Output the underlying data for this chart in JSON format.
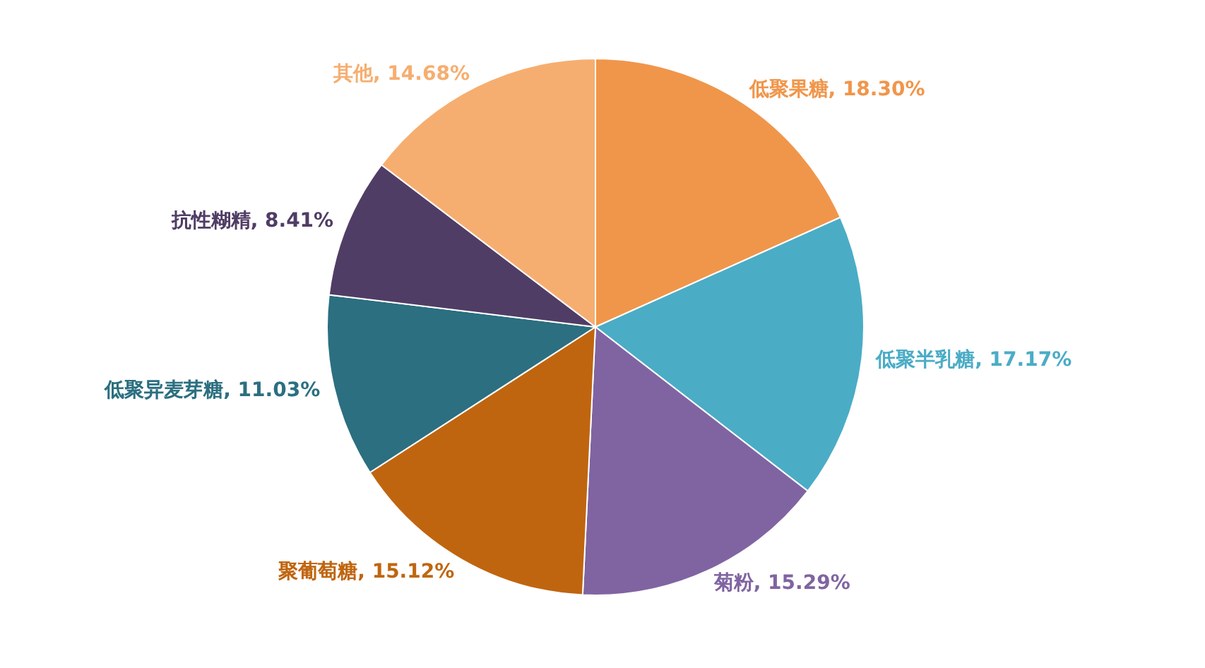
{
  "chart_data": {
    "type": "pie",
    "categories": [
      "低聚果糖",
      "低聚半乳糖",
      "菊粉",
      "聚葡萄糖",
      "低聚异麦芽糖",
      "抗性糊精",
      "其他"
    ],
    "values": [
      18.3,
      17.17,
      15.29,
      15.12,
      11.03,
      8.41,
      14.68
    ],
    "value_labels": [
      "18.30%",
      "17.17%",
      "15.29%",
      "15.12%",
      "11.03%",
      "8.41%",
      "14.68%"
    ],
    "colors": [
      "#f0964b",
      "#4bacc6",
      "#8064a2",
      "#c0650f",
      "#2b6f80",
      "#503d65",
      "#f6ae70"
    ],
    "legend": false
  }
}
